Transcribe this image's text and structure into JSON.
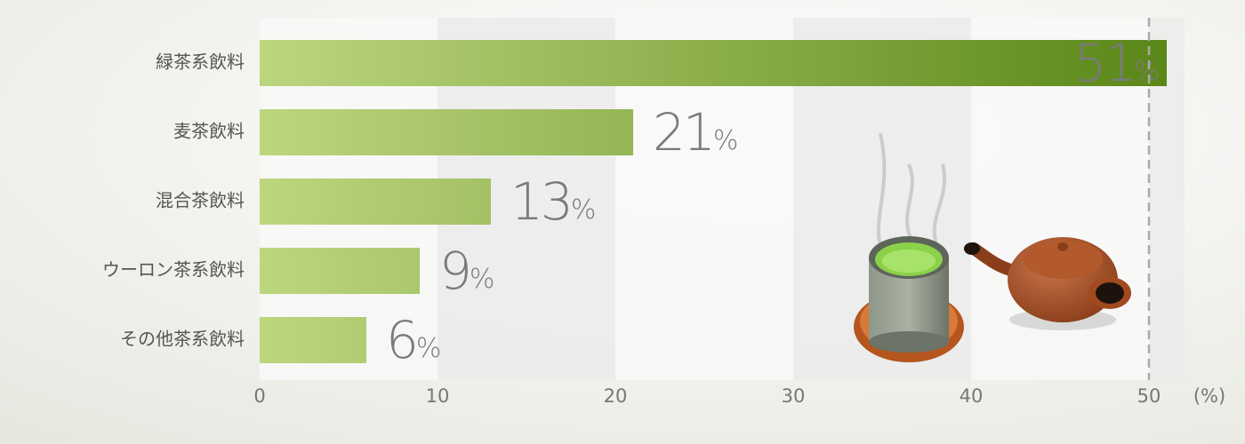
{
  "chart_data": {
    "type": "bar",
    "orientation": "horizontal",
    "categories": [
      "緑茶系飲料",
      "麦茶飲料",
      "混合茶飲料",
      "ウーロン茶系飲料",
      "その他茶系飲料"
    ],
    "values": [
      51,
      21,
      13,
      9,
      6
    ],
    "value_labels": [
      "51%",
      "21%",
      "13%",
      "9%",
      "6%"
    ],
    "color": [
      "#bcd67e",
      "#5a8718"
    ],
    "xlim": [
      0,
      52
    ],
    "xticks": [
      0,
      10,
      20,
      30,
      40,
      50
    ],
    "x_unit": "(%)",
    "reference_line": 50
  }
}
